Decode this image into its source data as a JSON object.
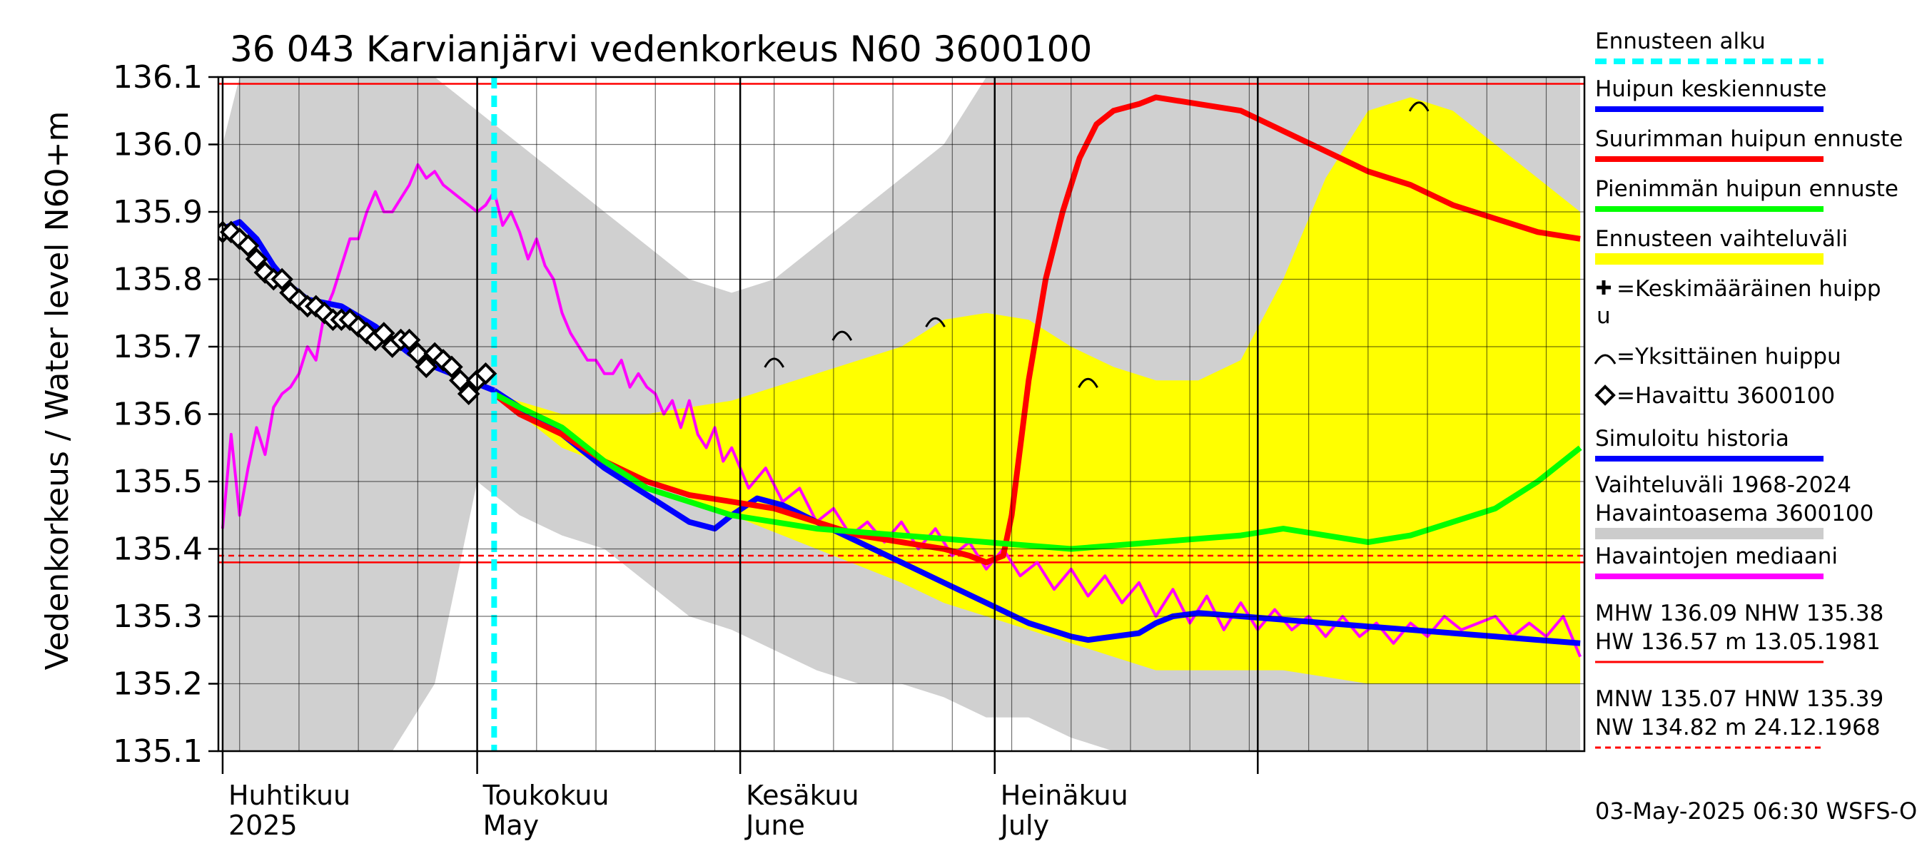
{
  "chart_data": {
    "type": "line",
    "title": "36 043 Karvianjärvi vedenkorkeus N60 3600100",
    "ylabel_left": "Vedenkorkeus / Water level",
    "ylabel_unit": "N60+m",
    "ylim": [
      135.1,
      136.1
    ],
    "yticks": [
      "135.1",
      "135.2",
      "135.3",
      "135.4",
      "135.5",
      "135.6",
      "135.7",
      "135.8",
      "135.9",
      "136.0",
      "136.1"
    ],
    "x_axis": {
      "type": "days",
      "range_days": [
        -30.5,
        130.5
      ],
      "day0": "2025-05-01",
      "month_labels": [
        {
          "day": -30,
          "fi": "Huhtikuu",
          "en": "2025"
        },
        {
          "day": 0,
          "fi": "Toukokuu",
          "en": "May"
        },
        {
          "day": 31,
          "fi": "Kesäkuu",
          "en": "June"
        },
        {
          "day": 61,
          "fi": "Heinäkuu",
          "en": "July"
        }
      ],
      "month_boundaries": [
        -30,
        0,
        31,
        61,
        92
      ]
    },
    "forecast_start_day": 2,
    "reference_lines": [
      {
        "name": "MHW",
        "value": 136.09,
        "style": "solid"
      },
      {
        "name": "NHW",
        "value": 135.38,
        "style": "solid"
      },
      {
        "name": "HNW",
        "value": 135.39,
        "style": "dashed"
      },
      {
        "name": "MNW",
        "value": 135.07,
        "style": "solid"
      }
    ],
    "historical_range": {
      "days": [
        -30,
        -29,
        -28,
        -27,
        -25,
        -22,
        -19,
        -15,
        -10,
        -5,
        0,
        5,
        10,
        15,
        20,
        25,
        30,
        35,
        40,
        45,
        50,
        55,
        60,
        65,
        70,
        75,
        80,
        85,
        90,
        95,
        100,
        105,
        110,
        115,
        120,
        125,
        130
      ],
      "upper": [
        136.0,
        136.05,
        136.1,
        136.1,
        136.1,
        136.1,
        136.1,
        136.1,
        136.1,
        136.1,
        136.05,
        136.0,
        135.95,
        135.9,
        135.85,
        135.8,
        135.78,
        135.8,
        135.85,
        135.9,
        135.95,
        136.0,
        136.1,
        136.1,
        136.1,
        136.1,
        136.1,
        136.1,
        136.1,
        136.1,
        136.1,
        136.1,
        136.1,
        136.1,
        136.1,
        136.1,
        136.1
      ],
      "lower": [
        135.1,
        135.1,
        135.1,
        135.1,
        135.1,
        135.1,
        135.1,
        135.1,
        135.1,
        135.2,
        135.5,
        135.45,
        135.42,
        135.4,
        135.35,
        135.3,
        135.28,
        135.25,
        135.22,
        135.2,
        135.2,
        135.18,
        135.15,
        135.15,
        135.12,
        135.1,
        135.1,
        135.1,
        135.1,
        135.1,
        135.1,
        135.1,
        135.1,
        135.1,
        135.1,
        135.1,
        135.1
      ]
    },
    "forecast_range": {
      "days": [
        2,
        10,
        20,
        30,
        40,
        50,
        55,
        60,
        65,
        70,
        75,
        80,
        85,
        90,
        95,
        100,
        105,
        110,
        115,
        120,
        125,
        130
      ],
      "upper": [
        135.63,
        135.6,
        135.6,
        135.62,
        135.66,
        135.7,
        135.74,
        135.75,
        135.74,
        135.7,
        135.67,
        135.65,
        135.65,
        135.68,
        135.8,
        135.95,
        136.05,
        136.07,
        136.05,
        136.0,
        135.95,
        135.9
      ],
      "lower": [
        135.63,
        135.55,
        135.5,
        135.45,
        135.4,
        135.35,
        135.32,
        135.3,
        135.28,
        135.26,
        135.24,
        135.22,
        135.22,
        135.22,
        135.22,
        135.21,
        135.2,
        135.2,
        135.2,
        135.2,
        135.2,
        135.2
      ]
    },
    "series": [
      {
        "name": "Havaintojen mediaani",
        "color": "#ff00ff",
        "days": [
          -30,
          -29,
          -28,
          -27,
          -26,
          -25,
          -24,
          -23,
          -22,
          -21,
          -20,
          -19,
          -18,
          -17,
          -16,
          -15,
          -14,
          -13,
          -12,
          -11,
          -10,
          -9,
          -8,
          -7,
          -6,
          -5,
          -4,
          -3,
          -2,
          -1,
          0,
          1,
          2,
          3,
          4,
          5,
          6,
          7,
          8,
          9,
          10,
          11,
          12,
          13,
          14,
          15,
          16,
          17,
          18,
          19,
          20,
          21,
          22,
          23,
          24,
          25,
          26,
          27,
          28,
          29,
          30,
          32,
          34,
          36,
          38,
          40,
          42,
          44,
          46,
          48,
          50,
          52,
          54,
          56,
          58,
          60,
          62,
          64,
          66,
          68,
          70,
          72,
          74,
          76,
          78,
          80,
          82,
          84,
          86,
          88,
          90,
          92,
          94,
          96,
          98,
          100,
          102,
          104,
          106,
          108,
          110,
          112,
          114,
          116,
          118,
          120,
          122,
          124,
          126,
          128,
          130
        ],
        "values": [
          135.43,
          135.57,
          135.45,
          135.52,
          135.58,
          135.54,
          135.61,
          135.63,
          135.64,
          135.66,
          135.7,
          135.68,
          135.75,
          135.78,
          135.82,
          135.86,
          135.86,
          135.9,
          135.93,
          135.9,
          135.9,
          135.92,
          135.94,
          135.97,
          135.95,
          135.96,
          135.94,
          135.93,
          135.92,
          135.91,
          135.9,
          135.91,
          135.93,
          135.88,
          135.9,
          135.87,
          135.83,
          135.86,
          135.82,
          135.8,
          135.75,
          135.72,
          135.7,
          135.68,
          135.68,
          135.66,
          135.66,
          135.68,
          135.64,
          135.66,
          135.64,
          135.63,
          135.6,
          135.62,
          135.58,
          135.62,
          135.57,
          135.55,
          135.58,
          135.53,
          135.55,
          135.49,
          135.52,
          135.47,
          135.49,
          135.44,
          135.46,
          135.42,
          135.44,
          135.41,
          135.44,
          135.4,
          135.43,
          135.39,
          135.41,
          135.37,
          135.4,
          135.36,
          135.38,
          135.34,
          135.37,
          135.33,
          135.36,
          135.32,
          135.35,
          135.3,
          135.34,
          135.29,
          135.33,
          135.28,
          135.32,
          135.28,
          135.31,
          135.28,
          135.3,
          135.27,
          135.3,
          135.27,
          135.29,
          135.26,
          135.29,
          135.27,
          135.3,
          135.28,
          135.29,
          135.3,
          135.27,
          135.29,
          135.27,
          135.3,
          135.24
        ]
      },
      {
        "name": "Simuloitu historia",
        "color": "#0000ff",
        "days": [
          -30,
          -28,
          -26,
          -24,
          -22,
          -20,
          -18,
          -16,
          -14,
          -12,
          -10,
          -8,
          -6,
          -4,
          -2,
          0,
          2
        ],
        "values": [
          135.875,
          135.885,
          135.86,
          135.82,
          135.79,
          135.77,
          135.765,
          135.76,
          135.745,
          135.73,
          135.71,
          135.69,
          135.675,
          135.665,
          135.655,
          135.645,
          135.635
        ]
      },
      {
        "name": "Huipun keskiennuste",
        "color": "#0000ff",
        "days": [
          2,
          5,
          10,
          15,
          20,
          25,
          28,
          30,
          33,
          36,
          40,
          45,
          50,
          55,
          60,
          65,
          70,
          72,
          75,
          78,
          80,
          82,
          85,
          90,
          95,
          100,
          105,
          110,
          115,
          120,
          125,
          130
        ],
        "values": [
          135.635,
          135.61,
          135.57,
          135.52,
          135.48,
          135.44,
          135.43,
          135.45,
          135.475,
          135.465,
          135.44,
          135.41,
          135.38,
          135.35,
          135.32,
          135.29,
          135.27,
          135.265,
          135.27,
          135.275,
          135.29,
          135.3,
          135.305,
          135.3,
          135.295,
          135.29,
          135.285,
          135.28,
          135.275,
          135.27,
          135.265,
          135.26
        ]
      },
      {
        "name": "Suurimman huipun ennuste",
        "color": "#ff0000",
        "days": [
          2,
          5,
          10,
          15,
          20,
          25,
          30,
          35,
          40,
          45,
          50,
          55,
          58,
          60,
          62,
          63,
          64,
          65,
          67,
          69,
          71,
          73,
          75,
          78,
          80,
          85,
          90,
          95,
          100,
          105,
          110,
          115,
          120,
          125,
          130
        ],
        "values": [
          135.63,
          135.6,
          135.57,
          135.53,
          135.5,
          135.48,
          135.47,
          135.46,
          135.44,
          135.42,
          135.41,
          135.4,
          135.39,
          135.38,
          135.39,
          135.45,
          135.55,
          135.65,
          135.8,
          135.9,
          135.98,
          136.03,
          136.05,
          136.06,
          136.07,
          136.06,
          136.05,
          136.02,
          135.99,
          135.96,
          135.94,
          135.91,
          135.89,
          135.87,
          135.86
        ]
      },
      {
        "name": "Pienimmän huipun ennuste",
        "color": "#00ff00",
        "days": [
          2,
          5,
          10,
          15,
          20,
          25,
          30,
          35,
          40,
          45,
          50,
          55,
          60,
          65,
          70,
          75,
          80,
          85,
          90,
          95,
          100,
          105,
          110,
          115,
          120,
          125,
          130
        ],
        "values": [
          135.63,
          135.61,
          135.58,
          135.53,
          135.49,
          135.47,
          135.45,
          135.44,
          135.43,
          135.425,
          135.42,
          135.415,
          135.41,
          135.405,
          135.4,
          135.405,
          135.41,
          135.415,
          135.42,
          135.43,
          135.42,
          135.41,
          135.42,
          135.44,
          135.46,
          135.5,
          135.55
        ]
      }
    ],
    "observed": {
      "name": "Havaittu 3600100",
      "days": [
        -30,
        -29,
        -28,
        -27,
        -26,
        -25,
        -24,
        -23,
        -22,
        -21,
        -20,
        -19,
        -18,
        -17,
        -16,
        -15,
        -14,
        -13,
        -12,
        -11,
        -10,
        -9,
        -8,
        -7,
        -6,
        -5,
        -4,
        -3,
        -2,
        -1,
        0,
        1
      ],
      "values": [
        135.87,
        135.87,
        135.86,
        135.85,
        135.83,
        135.81,
        135.8,
        135.8,
        135.78,
        135.77,
        135.76,
        135.76,
        135.75,
        135.74,
        135.74,
        135.74,
        135.73,
        135.72,
        135.71,
        135.72,
        135.7,
        135.71,
        135.71,
        135.69,
        135.67,
        135.69,
        135.68,
        135.67,
        135.65,
        135.63,
        135.65,
        135.66
      ]
    },
    "individual_peaks": [
      {
        "day": 35,
        "value": 135.68
      },
      {
        "day": 43,
        "value": 135.72
      },
      {
        "day": 54,
        "value": 135.74
      },
      {
        "day": 72,
        "value": 135.65
      },
      {
        "day": 111,
        "value": 136.06
      }
    ],
    "legend": [
      {
        "label": "Ennusteen alku",
        "color": "#00ffff",
        "style": "dashed"
      },
      {
        "label": "Huipun keskiennuste",
        "color": "#0000ff",
        "style": "solid"
      },
      {
        "label": "Suurimman huipun ennuste",
        "color": "#ff0000",
        "style": "solid"
      },
      {
        "label": "Pienimmän huipun ennuste",
        "color": "#00ff00",
        "style": "solid"
      },
      {
        "label": "Ennusteen vaihteluväli",
        "color": "#ffff00",
        "style": "band"
      },
      {
        "label": "=Keskimääräinen huipp",
        "label_cont": "u",
        "symbol": "plus"
      },
      {
        "label": "=Yksittäinen huippu",
        "symbol": "arc"
      },
      {
        "label": "=Havaittu 3600100",
        "symbol": "diamond"
      },
      {
        "label": "Simuloitu historia",
        "color": "#0000ff",
        "style": "solid"
      },
      {
        "label": "Vaihteluväli 1968-2024",
        "label_cont": " Havaintoasema 3600100",
        "color": "#cccccc",
        "style": "band"
      },
      {
        "label": "Havaintojen mediaani",
        "color": "#ff00ff",
        "style": "solid"
      }
    ],
    "stats": [
      {
        "line1": "MHW 136.09 NHW 135.38",
        "line2": "HW 136.57 m 13.05.1981",
        "color": "#ff0000",
        "style": "solid"
      },
      {
        "line1": "MNW 135.07 HNW 135.39",
        "line2": "NW 134.82 m 24.12.1968",
        "color": "#ff0000",
        "style": "dashed"
      }
    ],
    "timestamp": "03-May-2025 06:30 WSFS-O"
  }
}
